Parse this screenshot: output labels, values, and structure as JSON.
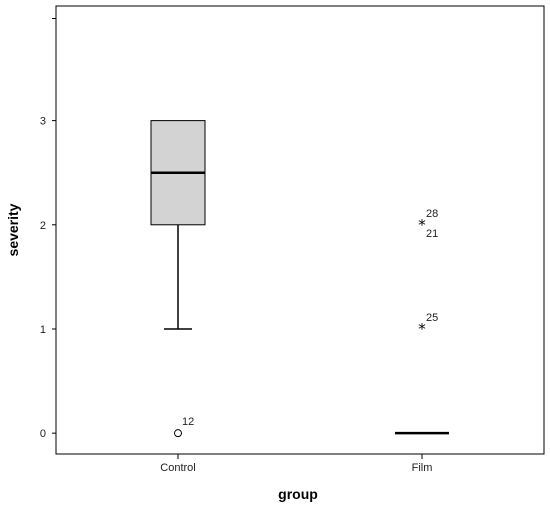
{
  "chart_data": {
    "type": "boxplot",
    "xlabel": "group",
    "ylabel": "severity",
    "ylim": [
      -0.2,
      4.1
    ],
    "yticks": [
      0,
      1,
      2,
      3
    ],
    "categories": [
      "Control",
      "Film"
    ],
    "boxes": [
      {
        "category": "Control",
        "min": 1,
        "q1": 2,
        "median": 2.5,
        "q3": 3,
        "max": 3,
        "fill": "#d3d3d3",
        "outliers": [
          {
            "value": 0,
            "label": "12",
            "marker": "circle"
          }
        ]
      },
      {
        "category": "Film",
        "min": 0,
        "q1": 0,
        "median": 0,
        "q3": 0,
        "max": 0,
        "fill": "#d3d3d3",
        "outliers": [
          {
            "value": 2,
            "label": "28",
            "marker": "star"
          },
          {
            "value": 2,
            "label": "21",
            "marker": "star"
          },
          {
            "value": 1,
            "label": "25",
            "marker": "star"
          }
        ]
      }
    ],
    "grid": false,
    "colors": {
      "box_fill": "#d3d3d3",
      "line": "#000000"
    }
  }
}
